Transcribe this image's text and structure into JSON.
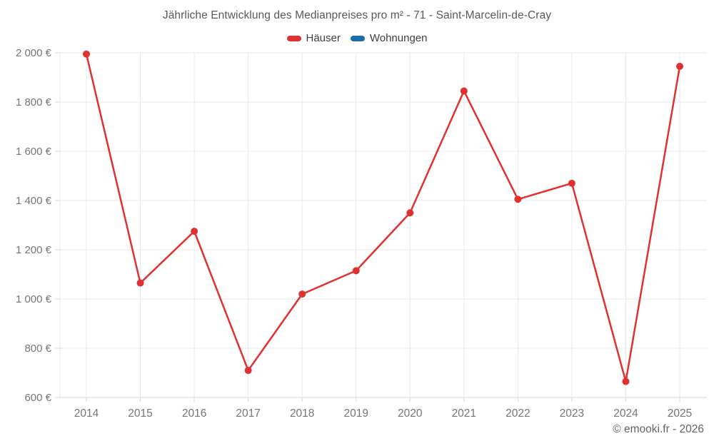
{
  "header": {
    "title": "Jährliche Entwicklung des Medianpreises pro m² - 71 - Saint-Marcelin-de-Cray"
  },
  "chart_data": {
    "type": "line",
    "title": "Jährliche Entwicklung des Medianpreises pro m² - 71 - Saint-Marcelin-de-Cray",
    "x": [
      2014,
      2015,
      2016,
      2017,
      2018,
      2019,
      2020,
      2021,
      2022,
      2023,
      2024,
      2025
    ],
    "series": [
      {
        "name": "Häuser",
        "color": "#e03030",
        "values": [
          1995,
          1065,
          1275,
          710,
          1020,
          1115,
          1350,
          1845,
          1405,
          1470,
          665,
          1945
        ]
      },
      {
        "name": "Wohnungen",
        "color": "#1b6ca8",
        "values": []
      }
    ],
    "xlabel": "",
    "ylabel": "",
    "ylim": [
      600,
      2000
    ],
    "y_ticks": [
      600,
      800,
      1000,
      1200,
      1400,
      1600,
      1800,
      2000
    ],
    "y_tick_labels": [
      "600 €",
      "800 €",
      "1 000 €",
      "1 200 €",
      "1 400 €",
      "1 600 €",
      "1 800 €",
      "2 000 €"
    ],
    "grid": true,
    "legend_position": "top",
    "colors": {
      "grid_line": "#e9e9e9",
      "axis_line": "#d6d6d6",
      "tick_label": "#757575"
    }
  },
  "footer": {
    "attribution": "© emooki.fr - 2026"
  }
}
